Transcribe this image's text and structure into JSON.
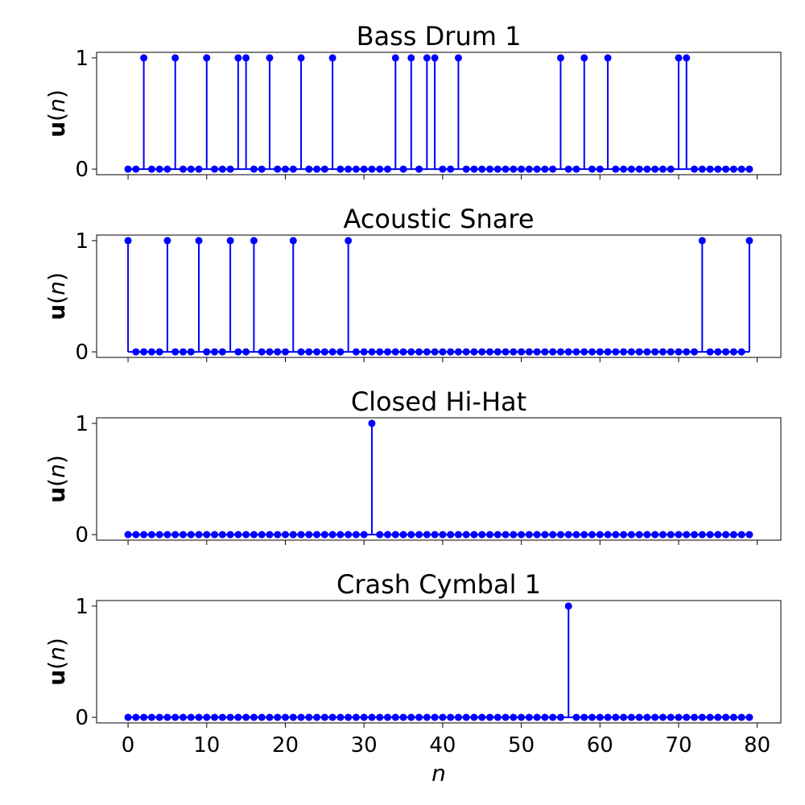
{
  "chart_data": [
    {
      "type": "stem",
      "title": "Bass Drum 1",
      "xlabel": "",
      "ylabel": "u(n)",
      "x_range": [
        0,
        79
      ],
      "xlim": [
        -4,
        83
      ],
      "ylim": [
        -0.05,
        1.05
      ],
      "yticks": [
        0,
        1
      ],
      "marker_color": "#0000ff",
      "ones": [
        2,
        6,
        10,
        14,
        15,
        18,
        22,
        26,
        34,
        36,
        38,
        39,
        42,
        55,
        58,
        61,
        70,
        71
      ]
    },
    {
      "type": "stem",
      "title": "Acoustic Snare",
      "xlabel": "",
      "ylabel": "u(n)",
      "x_range": [
        0,
        79
      ],
      "xlim": [
        -4,
        83
      ],
      "ylim": [
        -0.05,
        1.05
      ],
      "yticks": [
        0,
        1
      ],
      "marker_color": "#0000ff",
      "ones": [
        0,
        5,
        9,
        13,
        16,
        21,
        28,
        73,
        79
      ]
    },
    {
      "type": "stem",
      "title": "Closed Hi-Hat",
      "xlabel": "",
      "ylabel": "u(n)",
      "x_range": [
        0,
        79
      ],
      "xlim": [
        -4,
        83
      ],
      "ylim": [
        -0.05,
        1.05
      ],
      "yticks": [
        0,
        1
      ],
      "marker_color": "#0000ff",
      "ones": [
        31
      ]
    },
    {
      "type": "stem",
      "title": "Crash Cymbal 1",
      "xlabel": "n",
      "ylabel": "u(n)",
      "x_range": [
        0,
        79
      ],
      "xlim": [
        -4,
        83
      ],
      "ylim": [
        -0.05,
        1.05
      ],
      "yticks": [
        0,
        1
      ],
      "xticks": [
        0,
        10,
        20,
        30,
        40,
        50,
        60,
        70,
        80
      ],
      "marker_color": "#0000ff",
      "ones": [
        56
      ]
    }
  ]
}
